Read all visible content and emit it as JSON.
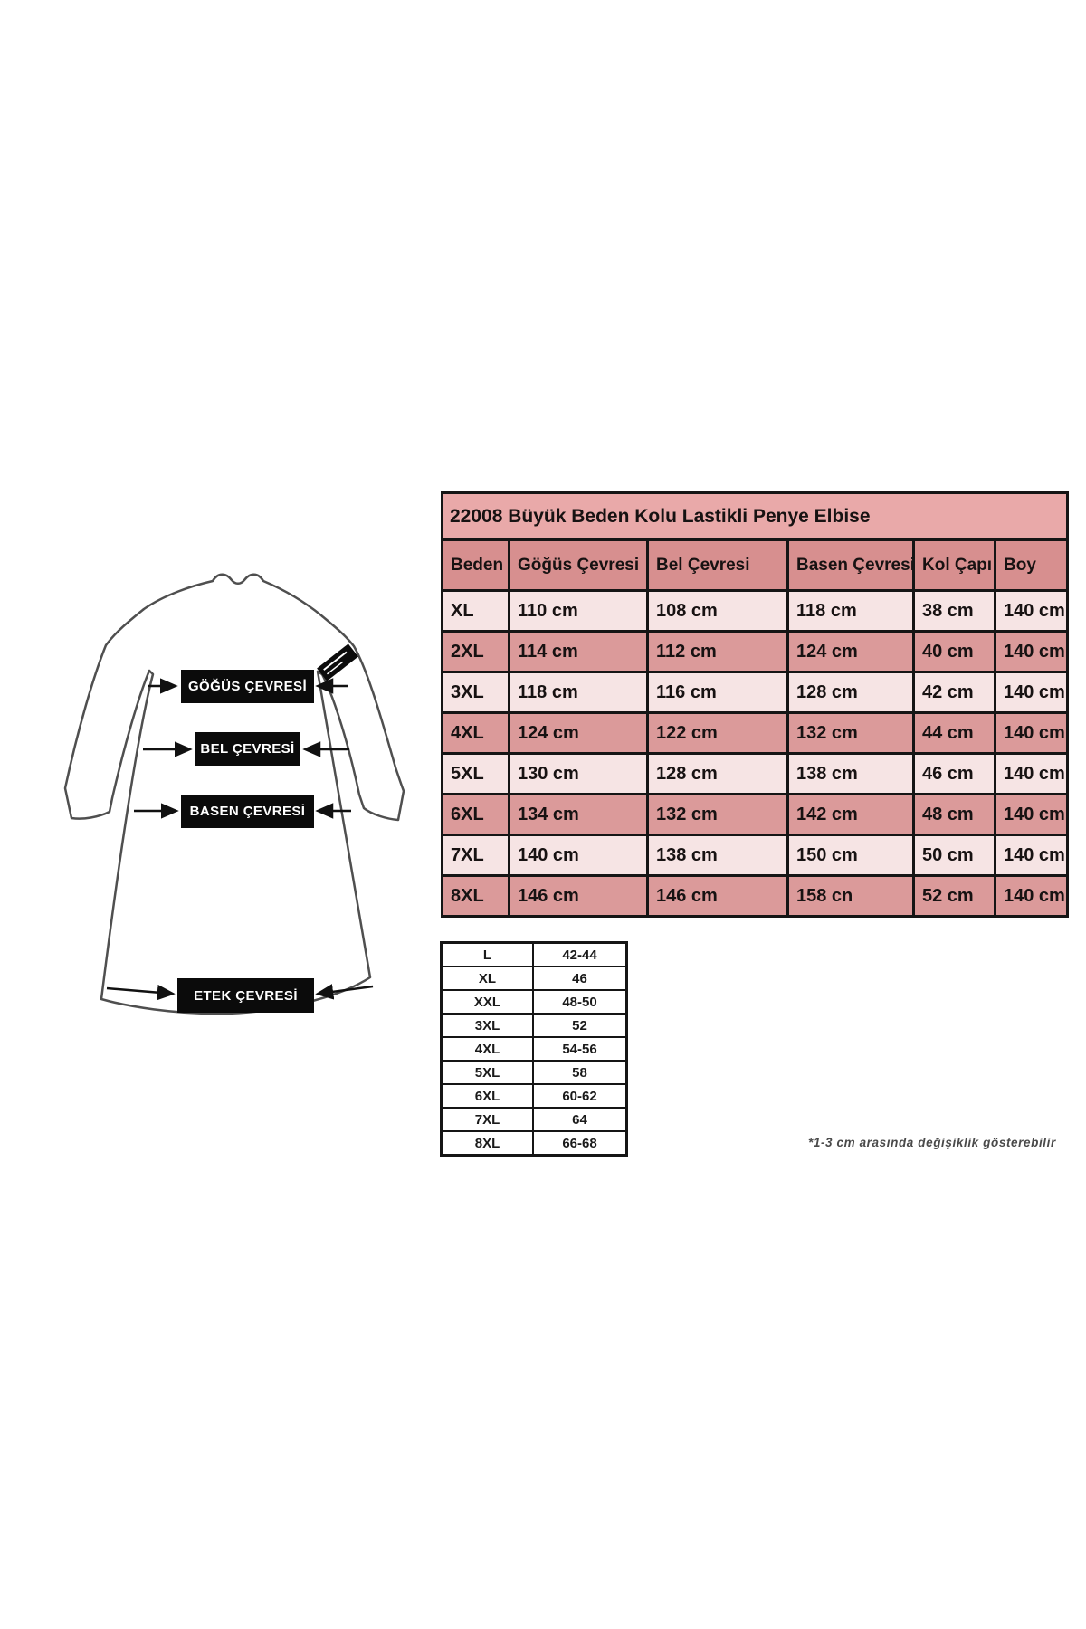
{
  "diagram": {
    "labels": {
      "chest": "GÖĞÜS ÇEVRESİ",
      "waist": "BEL ÇEVRESİ",
      "hip": "BASEN ÇEVRESİ",
      "hem": "ETEK ÇEVRESİ"
    }
  },
  "size_table": {
    "title": "22008 Büyük Beden Kolu Lastikli Penye Elbise",
    "columns": [
      "Beden",
      "Göğüs Çevresi",
      "Bel Çevresi",
      "Basen Çevresi",
      "Kol Çapı",
      "Boy"
    ],
    "rows": [
      [
        "XL",
        "110 cm",
        "108 cm",
        "118 cm",
        "38 cm",
        "140 cm"
      ],
      [
        "2XL",
        "114 cm",
        "112 cm",
        "124 cm",
        "40 cm",
        "140 cm"
      ],
      [
        "3XL",
        "118 cm",
        "116 cm",
        "128 cm",
        "42 cm",
        "140 cm"
      ],
      [
        "4XL",
        "124 cm",
        "122 cm",
        "132 cm",
        "44 cm",
        "140 cm"
      ],
      [
        "5XL",
        "130 cm",
        "128 cm",
        "138 cm",
        "46 cm",
        "140 cm"
      ],
      [
        "6XL",
        "134 cm",
        "132 cm",
        "142 cm",
        "48 cm",
        "140 cm"
      ],
      [
        "7XL",
        "140 cm",
        "138 cm",
        "150 cm",
        "50 cm",
        "140 cm"
      ],
      [
        "8XL",
        "146 cm",
        "146 cm",
        "158 cn",
        "52 cm",
        "140 cm"
      ]
    ]
  },
  "conversion_table": {
    "rows": [
      [
        "L",
        "42-44"
      ],
      [
        "XL",
        "46"
      ],
      [
        "XXL",
        "48-50"
      ],
      [
        "3XL",
        "52"
      ],
      [
        "4XL",
        "54-56"
      ],
      [
        "5XL",
        "58"
      ],
      [
        "6XL",
        "60-62"
      ],
      [
        "7XL",
        "64"
      ],
      [
        "8XL",
        "66-68"
      ]
    ]
  },
  "footnote": "*1-3 cm arasında değişiklik gösterebilir",
  "colors": {
    "title_bg": "#e9a9a9",
    "header_bg": "#d78f8f",
    "row_light": "#f6e4e4",
    "row_dark": "#db9a9a",
    "table_border": "#151515",
    "label_box_bg": "#0b0b0b",
    "label_text": "#ffffff",
    "dress_stroke": "#4f4f4f",
    "footnote_color": "#4a4a4a"
  }
}
